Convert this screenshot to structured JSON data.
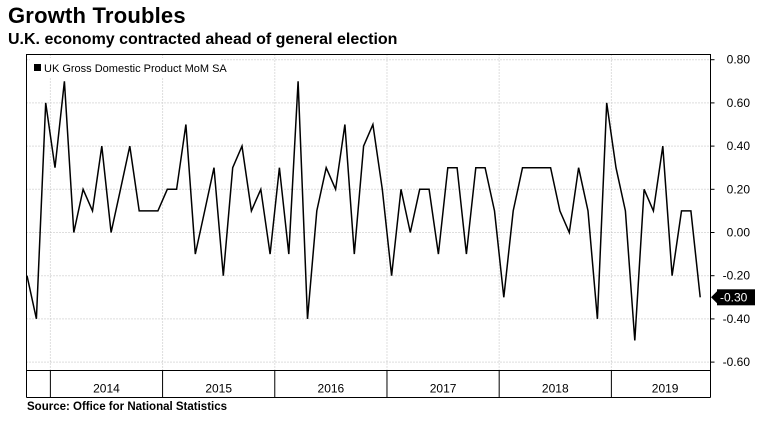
{
  "header": {
    "title": "Growth Troubles",
    "subtitle": "U.K. economy contracted ahead of general election"
  },
  "footer": {
    "source": "Source:  Office for National Statistics"
  },
  "colors": {
    "line": "#000000",
    "grid": "#bdbdbd",
    "last_value_bg": "#000000",
    "last_value_text": "#ffffff"
  },
  "chart_data": {
    "type": "line",
    "title": "Growth Troubles",
    "subtitle": "U.K. economy contracted ahead of general election",
    "legend": [
      "UK Gross Domestic Product MoM SA"
    ],
    "legend_position": "top-left",
    "xlabel": "",
    "ylabel": "",
    "ylim": [
      -0.65,
      0.82
    ],
    "y_ticks": [
      0.8,
      0.6,
      0.4,
      0.2,
      0.0,
      -0.2,
      -0.4,
      -0.6
    ],
    "y_tick_labels": [
      "0.80",
      "0.60",
      "0.40",
      "0.20",
      "0.00",
      "-0.20",
      "-0.40",
      "-0.60"
    ],
    "x_period_labels": [
      "2014",
      "2015",
      "2016",
      "2017",
      "2018",
      "2019"
    ],
    "start": "2013-10",
    "last_value_label": "-0.30",
    "grid": true,
    "series": [
      {
        "name": "UK Gross Domestic Product MoM SA",
        "values": [
          -0.2,
          -0.4,
          0.6,
          0.3,
          0.7,
          0.0,
          0.2,
          0.1,
          0.4,
          0.0,
          0.2,
          0.4,
          0.1,
          0.1,
          0.1,
          0.2,
          0.2,
          0.5,
          -0.1,
          0.1,
          0.3,
          -0.2,
          0.3,
          0.4,
          0.1,
          0.2,
          -0.1,
          0.3,
          -0.1,
          0.7,
          -0.4,
          0.1,
          0.3,
          0.2,
          0.5,
          -0.1,
          0.4,
          0.5,
          0.2,
          -0.2,
          0.2,
          0.0,
          0.2,
          0.2,
          -0.1,
          0.3,
          0.3,
          -0.1,
          0.3,
          0.3,
          0.1,
          -0.3,
          0.1,
          0.3,
          0.3,
          0.3,
          0.3,
          0.1,
          0.0,
          0.3,
          0.1,
          -0.4,
          0.6,
          0.3,
          0.1,
          -0.5,
          0.2,
          0.1,
          0.4,
          -0.2,
          0.1,
          0.1,
          -0.3
        ]
      }
    ]
  }
}
